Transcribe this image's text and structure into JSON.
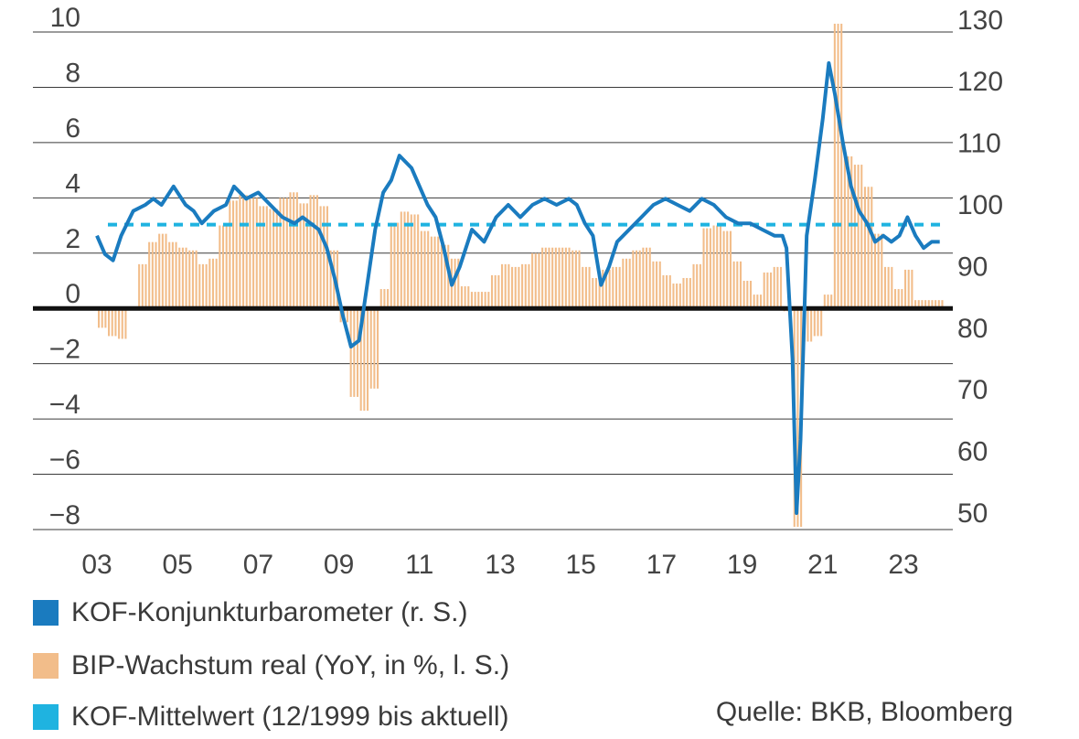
{
  "chart_data": {
    "type": "bar+line",
    "x_tick_labels": [
      "03",
      "05",
      "07",
      "09",
      "11",
      "13",
      "15",
      "17",
      "19",
      "21",
      "23"
    ],
    "y_left": {
      "ticks": [
        10,
        8,
        6,
        4,
        2,
        0,
        -2,
        -4,
        -6,
        -8
      ],
      "tick_labels": [
        "10",
        "8",
        "6",
        "4",
        "2",
        "0",
        "−2",
        "−4",
        "−6",
        "−8"
      ],
      "range": [
        -8,
        10
      ]
    },
    "y_right": {
      "ticks": [
        130,
        120,
        110,
        100,
        90,
        80,
        70,
        60,
        50
      ],
      "tick_labels": [
        "130",
        "120",
        "110",
        "100",
        "90",
        "80",
        "70",
        "60",
        "50"
      ],
      "range": [
        50,
        130
      ]
    },
    "grid": true,
    "legend_placement": "bottom",
    "series": [
      {
        "name": "KOF-Konjunkturbarometer (r. S.)",
        "axis": "right",
        "kind": "line",
        "color": "#1a7bbf",
        "points": [
          [
            2003.0,
            95
          ],
          [
            2003.2,
            92
          ],
          [
            2003.4,
            91
          ],
          [
            2003.6,
            95
          ],
          [
            2003.9,
            99
          ],
          [
            2004.2,
            100
          ],
          [
            2004.4,
            101
          ],
          [
            2004.6,
            100
          ],
          [
            2004.9,
            103
          ],
          [
            2005.2,
            100
          ],
          [
            2005.4,
            99
          ],
          [
            2005.6,
            97
          ],
          [
            2005.9,
            99
          ],
          [
            2006.2,
            100
          ],
          [
            2006.4,
            103
          ],
          [
            2006.7,
            101
          ],
          [
            2007.0,
            102
          ],
          [
            2007.3,
            100
          ],
          [
            2007.6,
            98
          ],
          [
            2007.9,
            97
          ],
          [
            2008.1,
            98
          ],
          [
            2008.3,
            97
          ],
          [
            2008.5,
            96
          ],
          [
            2008.7,
            93
          ],
          [
            2008.9,
            88
          ],
          [
            2009.1,
            82
          ],
          [
            2009.3,
            77
          ],
          [
            2009.5,
            78
          ],
          [
            2009.7,
            87
          ],
          [
            2009.9,
            96
          ],
          [
            2010.1,
            102
          ],
          [
            2010.3,
            104
          ],
          [
            2010.5,
            108
          ],
          [
            2010.8,
            106
          ],
          [
            2011.0,
            103
          ],
          [
            2011.2,
            100
          ],
          [
            2011.4,
            98
          ],
          [
            2011.6,
            93
          ],
          [
            2011.8,
            87
          ],
          [
            2012.0,
            90
          ],
          [
            2012.3,
            96
          ],
          [
            2012.6,
            94
          ],
          [
            2012.9,
            98
          ],
          [
            2013.2,
            100
          ],
          [
            2013.5,
            98
          ],
          [
            2013.8,
            100
          ],
          [
            2014.1,
            101
          ],
          [
            2014.4,
            100
          ],
          [
            2014.7,
            101
          ],
          [
            2014.9,
            100
          ],
          [
            2015.1,
            97
          ],
          [
            2015.3,
            95
          ],
          [
            2015.5,
            87
          ],
          [
            2015.7,
            90
          ],
          [
            2015.9,
            94
          ],
          [
            2016.2,
            96
          ],
          [
            2016.5,
            98
          ],
          [
            2016.8,
            100
          ],
          [
            2017.1,
            101
          ],
          [
            2017.4,
            100
          ],
          [
            2017.7,
            99
          ],
          [
            2018.0,
            101
          ],
          [
            2018.3,
            100
          ],
          [
            2018.6,
            98
          ],
          [
            2018.9,
            97
          ],
          [
            2019.2,
            97
          ],
          [
            2019.5,
            96
          ],
          [
            2019.8,
            95
          ],
          [
            2020.0,
            95
          ],
          [
            2020.1,
            93
          ],
          [
            2020.25,
            75
          ],
          [
            2020.35,
            50
          ],
          [
            2020.45,
            62
          ],
          [
            2020.6,
            95
          ],
          [
            2020.8,
            104
          ],
          [
            2021.0,
            114
          ],
          [
            2021.15,
            123
          ],
          [
            2021.3,
            118
          ],
          [
            2021.5,
            110
          ],
          [
            2021.7,
            103
          ],
          [
            2021.9,
            99
          ],
          [
            2022.1,
            97
          ],
          [
            2022.3,
            94
          ],
          [
            2022.5,
            95
          ],
          [
            2022.7,
            94
          ],
          [
            2022.9,
            95
          ],
          [
            2023.1,
            98
          ],
          [
            2023.3,
            95
          ],
          [
            2023.5,
            93
          ],
          [
            2023.7,
            94
          ],
          [
            2023.9,
            94
          ]
        ]
      },
      {
        "name": "BIP-Wachstum real (YoY, in %, l. S.)",
        "axis": "left",
        "kind": "bar",
        "color": "#f2bd8a",
        "points": [
          [
            2003.0,
            -0.7
          ],
          [
            2003.25,
            -1.0
          ],
          [
            2003.5,
            -1.1
          ],
          [
            2003.75,
            0.0
          ],
          [
            2004.0,
            1.6
          ],
          [
            2004.25,
            2.4
          ],
          [
            2004.5,
            2.7
          ],
          [
            2004.75,
            2.4
          ],
          [
            2005.0,
            2.2
          ],
          [
            2005.25,
            2.1
          ],
          [
            2005.5,
            1.6
          ],
          [
            2005.75,
            1.8
          ],
          [
            2006.0,
            3.0
          ],
          [
            2006.25,
            3.9
          ],
          [
            2006.5,
            4.1
          ],
          [
            2006.75,
            4.0
          ],
          [
            2007.0,
            3.7
          ],
          [
            2007.25,
            3.6
          ],
          [
            2007.5,
            4.0
          ],
          [
            2007.75,
            4.2
          ],
          [
            2008.0,
            3.8
          ],
          [
            2008.25,
            4.1
          ],
          [
            2008.5,
            3.7
          ],
          [
            2008.75,
            2.1
          ],
          [
            2009.0,
            -0.5
          ],
          [
            2009.25,
            -3.2
          ],
          [
            2009.5,
            -3.7
          ],
          [
            2009.75,
            -2.9
          ],
          [
            2010.0,
            0.7
          ],
          [
            2010.25,
            3.1
          ],
          [
            2010.5,
            3.5
          ],
          [
            2010.75,
            3.4
          ],
          [
            2011.0,
            2.8
          ],
          [
            2011.25,
            2.6
          ],
          [
            2011.5,
            2.3
          ],
          [
            2011.75,
            1.8
          ],
          [
            2012.0,
            0.8
          ],
          [
            2012.25,
            0.6
          ],
          [
            2012.5,
            0.6
          ],
          [
            2012.75,
            1.2
          ],
          [
            2013.0,
            1.6
          ],
          [
            2013.25,
            1.5
          ],
          [
            2013.5,
            1.6
          ],
          [
            2013.75,
            2.0
          ],
          [
            2014.0,
            2.2
          ],
          [
            2014.25,
            2.2
          ],
          [
            2014.5,
            2.2
          ],
          [
            2014.75,
            2.1
          ],
          [
            2015.0,
            1.5
          ],
          [
            2015.25,
            1.1
          ],
          [
            2015.5,
            1.4
          ],
          [
            2015.75,
            1.5
          ],
          [
            2016.0,
            1.8
          ],
          [
            2016.25,
            2.1
          ],
          [
            2016.5,
            2.2
          ],
          [
            2016.75,
            1.7
          ],
          [
            2017.0,
            1.2
          ],
          [
            2017.25,
            0.9
          ],
          [
            2017.5,
            1.1
          ],
          [
            2017.75,
            1.6
          ],
          [
            2018.0,
            2.9
          ],
          [
            2018.25,
            3.0
          ],
          [
            2018.5,
            2.8
          ],
          [
            2018.75,
            1.7
          ],
          [
            2019.0,
            1.0
          ],
          [
            2019.25,
            0.5
          ],
          [
            2019.5,
            1.3
          ],
          [
            2019.75,
            1.5
          ],
          [
            2020.0,
            -0.1
          ],
          [
            2020.25,
            -7.9
          ],
          [
            2020.5,
            -1.2
          ],
          [
            2020.75,
            -1.0
          ],
          [
            2021.0,
            0.5
          ],
          [
            2021.25,
            10.3
          ],
          [
            2021.5,
            5.5
          ],
          [
            2021.75,
            5.2
          ],
          [
            2022.0,
            4.4
          ],
          [
            2022.25,
            2.7
          ],
          [
            2022.5,
            1.5
          ],
          [
            2022.75,
            0.7
          ],
          [
            2023.0,
            1.4
          ],
          [
            2023.25,
            0.3
          ],
          [
            2023.5,
            0.3
          ],
          [
            2023.75,
            0.3
          ]
        ]
      },
      {
        "name": "KOF-Mittelwert (12/1999 bis aktuell)",
        "axis": "right",
        "kind": "dashed-line",
        "color": "#1fb3e0",
        "value": 96.8
      }
    ]
  },
  "legend": {
    "items": [
      {
        "label": "KOF-Konjunkturbarometer (r. S.)",
        "color": "#1a7bbf"
      },
      {
        "label": "BIP-Wachstum real (YoY, in %, l. S.)",
        "color": "#f2bd8a"
      },
      {
        "label": "KOF-Mittelwert (12/1999 bis aktuell)",
        "color": "#1fb3e0"
      }
    ]
  },
  "source": "Quelle: BKB, Bloomberg"
}
